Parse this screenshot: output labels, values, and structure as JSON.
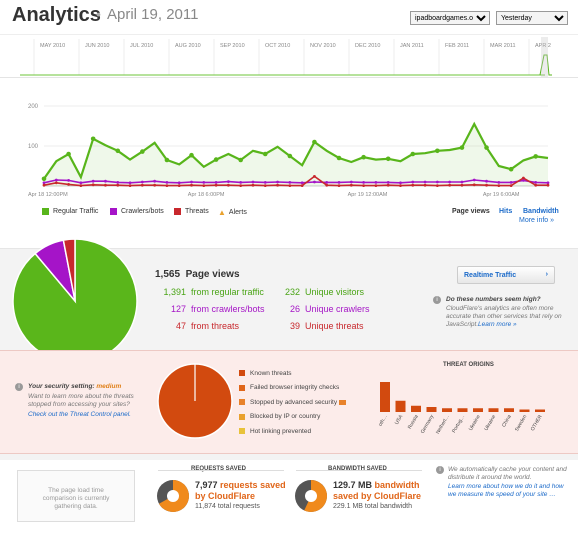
{
  "header": {
    "title": "Analytics",
    "separator": "•",
    "date": "April 19, 2011",
    "site_select": "ipadboardgames.org",
    "period_select": "Yesterday"
  },
  "timeline": {
    "months": [
      "MAY 2010",
      "JUN 2010",
      "JUL 2010",
      "AUG 2010",
      "SEP 2010",
      "OCT 2010",
      "NOV 2010",
      "DEC 2010",
      "JAN 2011",
      "FEB 2011",
      "MAR 2011",
      "APR 2"
    ]
  },
  "chart_data": {
    "type": "line",
    "title": "",
    "xlabel": "",
    "ylabel": "",
    "ylim": [
      0,
      200
    ],
    "yticks": [
      "200",
      "100"
    ],
    "xticks": [
      "Apr 18 12:00PM",
      "Apr 18 6:00PM",
      "Apr 19 12:00AM",
      "Apr 19 6:00AM"
    ],
    "series": [
      {
        "name": "Regular Traffic",
        "color": "#58b51b",
        "values": [
          18,
          62,
          80,
          22,
          118,
          102,
          88,
          66,
          86,
          108,
          65,
          54,
          77,
          48,
          66,
          80,
          65,
          88,
          80,
          98,
          75,
          52,
          110,
          88,
          70,
          60,
          72,
          66,
          68,
          62,
          80,
          82,
          88,
          90,
          96,
          155,
          96,
          50,
          42,
          64,
          74,
          70
        ]
      },
      {
        "name": "Crawlers/bots",
        "color": "#a514c8",
        "values": [
          8,
          15,
          14,
          8,
          12,
          12,
          9,
          8,
          10,
          12,
          9,
          8,
          10,
          9,
          9,
          11,
          9,
          10,
          9,
          10,
          9,
          8,
          10,
          9,
          9,
          10,
          9,
          9,
          9,
          8,
          10,
          10,
          10,
          10,
          10,
          15,
          12,
          9,
          9,
          14,
          9,
          8
        ]
      },
      {
        "name": "Threats",
        "color": "#c8282d",
        "values": [
          2,
          8,
          4,
          1,
          3,
          2,
          2,
          1,
          2,
          2,
          1,
          1,
          2,
          1,
          2,
          2,
          1,
          2,
          1,
          2,
          1,
          1,
          24,
          2,
          1,
          2,
          1,
          1,
          2,
          1,
          2,
          2,
          1,
          2,
          2,
          3,
          2,
          1,
          1,
          20,
          2,
          2
        ]
      }
    ],
    "alerts_name": "Alerts"
  },
  "view_tabs": {
    "page_views": "Page views",
    "hits": "Hits",
    "bandwidth": "Bandwidth",
    "more_info": "More info »"
  },
  "stats": {
    "page_views_num": "1,565",
    "page_views_label": "Page views",
    "regular_num": "1,391",
    "regular_label": "from regular traffic",
    "crawlers_num": "127",
    "crawlers_label": "from crawlers/bots",
    "threats_num": "47",
    "threats_label": "from threats",
    "unique_visitors_num": "232",
    "unique_visitors_label": "Unique visitors",
    "unique_crawlers_num": "26",
    "unique_crawlers_label": "Unique crawlers",
    "unique_threats_num": "39",
    "unique_threats_label": "Unique threats",
    "realtime_button": "Realtime Traffic",
    "numbers_q": "Do these numbers seem high?",
    "numbers_text": "CloudFlare's analytics are often more accurate than other services that rely on JavaScript.",
    "learn_more": "Learn more »"
  },
  "pie_main": {
    "regular": 1391,
    "crawlers": 127,
    "threats": 47
  },
  "security": {
    "label": "Your security setting:",
    "level": "medium",
    "text": "Want to learn more about the threats stopped from accessing your sites?",
    "link": "Check out the Threat Control panel.",
    "legend": [
      {
        "label": "Known threats",
        "color": "#d24a0f"
      },
      {
        "label": "Failed browser integrity checks",
        "color": "#e0661a"
      },
      {
        "label": "Stopped by advanced security",
        "color": "#e8822a"
      },
      {
        "label": "Blocked by IP or country",
        "color": "#e9a12e"
      },
      {
        "label": "Hot linking prevented",
        "color": "#e8c23a"
      }
    ],
    "origins_title": "THREAT ORIGINS",
    "origins": [
      {
        "country": "oth…",
        "value": 24
      },
      {
        "country": "USA",
        "value": 9
      },
      {
        "country": "Russia",
        "value": 5
      },
      {
        "country": "Germany",
        "value": 4
      },
      {
        "country": "Netherl…",
        "value": 3
      },
      {
        "country": "Portug…",
        "value": 3
      },
      {
        "country": "Ukraine",
        "value": 3
      },
      {
        "country": "Ukraine",
        "value": 3
      },
      {
        "country": "China",
        "value": 3
      },
      {
        "country": "Sweden",
        "value": 2
      },
      {
        "country": "OTHER",
        "value": 2
      }
    ]
  },
  "bottom": {
    "load_time": "The page load time comparison is currently gathering data.",
    "requests_title": "REQUESTS SAVED",
    "requests_num": "7,977",
    "requests_label": "requests saved",
    "requests_by": "by CloudFlare",
    "requests_total": "11,874 total requests",
    "bandwidth_title": "BANDWIDTH SAVED",
    "bandwidth_num": "129.7 MB",
    "bandwidth_label": "bandwidth",
    "bandwidth_by": "saved by CloudFlare",
    "bandwidth_total": "229.1 MB total bandwidth",
    "cache_text": "We automatically cache your content and distribute it around the world.",
    "cache_link": "Learn more about how we do it and how we measure the speed of your site …",
    "requests_saved_fraction": 0.67,
    "bandwidth_saved_fraction": 0.57
  }
}
